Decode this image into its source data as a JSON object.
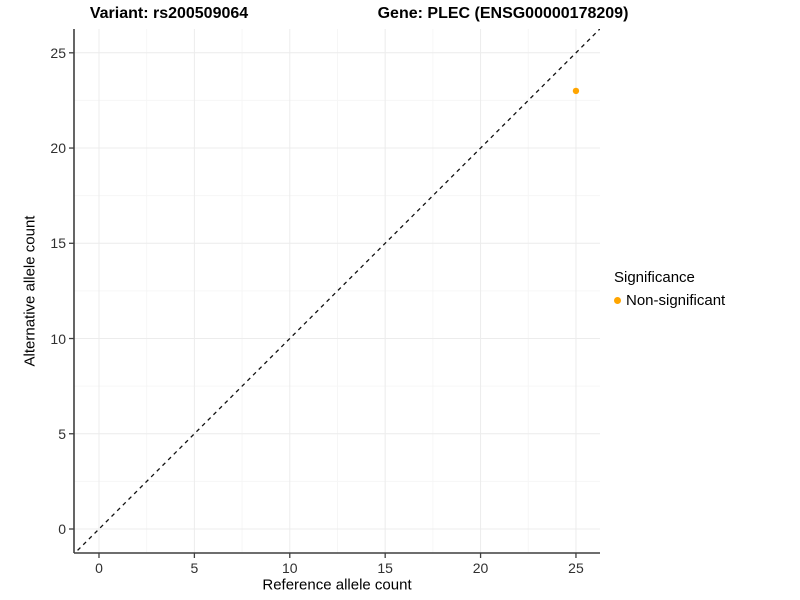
{
  "chart_data": {
    "type": "scatter",
    "titles": [
      "Variant: rs200509064",
      "Gene: PLEC (ENSG00000178209)"
    ],
    "xlabel": "Reference allele count",
    "ylabel": "Alternative allele count",
    "xlim": [
      -1.31,
      26.26
    ],
    "ylim": [
      -1.26,
      26.25
    ],
    "xticks": [
      0,
      5,
      10,
      15,
      20,
      25
    ],
    "yticks": [
      0,
      5,
      10,
      15,
      20,
      25
    ],
    "minor_ticks": [
      2.5,
      7.5,
      12.5,
      17.5,
      22.5
    ],
    "grid": true,
    "reference_line": {
      "type": "identity y=x",
      "style": "dashed",
      "color": "#111111"
    },
    "points": [
      {
        "x": 25,
        "y": 23,
        "series": "Non-significant",
        "color": "#FFA500"
      }
    ],
    "legend": {
      "title": "Significance",
      "position": "right",
      "items": [
        {
          "label": "Non-significant",
          "color": "#FFA500"
        }
      ]
    },
    "colors": {
      "point": "#FFA500",
      "axis_line": "#3f3f3f",
      "major_grid": "#ececec",
      "minor_grid": "#f6f6f6",
      "tick_text": "#303030"
    }
  }
}
